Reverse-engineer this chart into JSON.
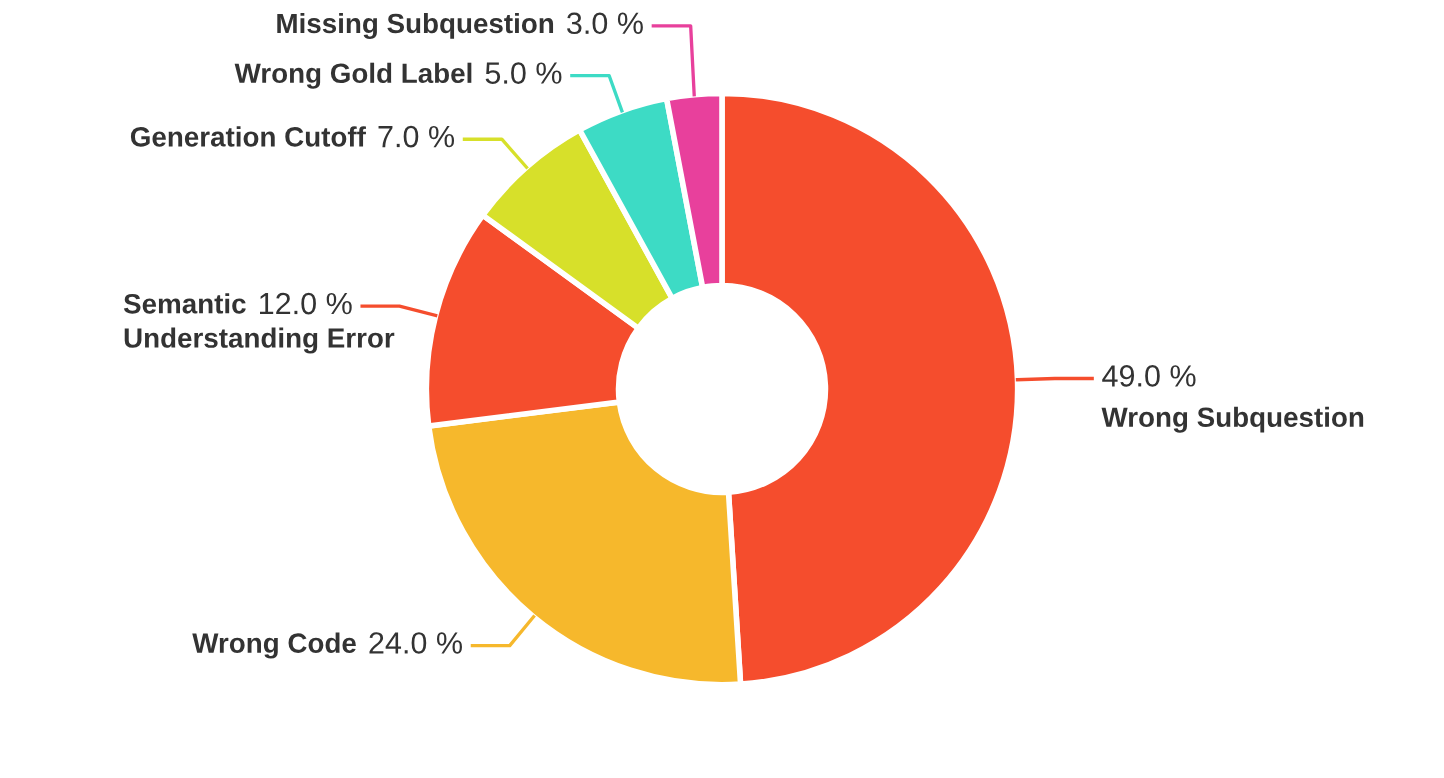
{
  "chart_data": {
    "type": "donut",
    "categories": [
      "Wrong Subquestion",
      "Wrong Code",
      "Semantic Understanding Error",
      "Generation Cutoff",
      "Wrong Gold Label",
      "Missing Subquestion"
    ],
    "values": [
      49.0,
      24.0,
      12.0,
      7.0,
      5.0,
      3.0
    ],
    "value_labels": [
      "49.0 %",
      "24.0 %",
      "12.0 %",
      "7.0 %",
      "5.0 %",
      "3.0 %"
    ],
    "colors": [
      "#f54d2d",
      "#f6b82c",
      "#f54d2d",
      "#d7e02a",
      "#3ddbc5",
      "#e8409c"
    ],
    "legend": false
  }
}
